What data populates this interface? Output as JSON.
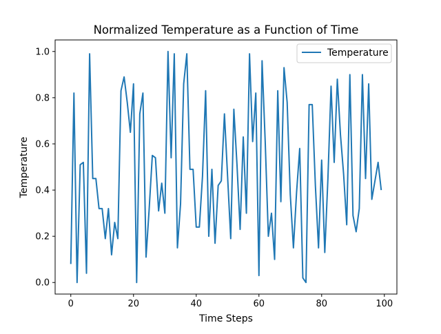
{
  "chart_data": {
    "type": "line",
    "title": "Normalized Temperature as a Function of Time",
    "xlabel": "Time Steps",
    "ylabel": "Temperature",
    "xlim": [
      -5,
      104
    ],
    "ylim": [
      -0.05,
      1.05
    ],
    "xticks": [
      0,
      20,
      40,
      60,
      80,
      100
    ],
    "yticks": [
      0.0,
      0.2,
      0.4,
      0.6,
      0.8,
      1.0
    ],
    "xtick_labels": [
      "0",
      "20",
      "40",
      "60",
      "80",
      "100"
    ],
    "ytick_labels": [
      "0.0",
      "0.2",
      "0.4",
      "0.6",
      "0.8",
      "1.0"
    ],
    "grid": false,
    "legend": {
      "position": "top-right"
    },
    "series": [
      {
        "name": "Temperature",
        "color": "#1f77b4",
        "x": [
          0,
          1,
          2,
          3,
          4,
          5,
          6,
          7,
          8,
          9,
          10,
          11,
          12,
          13,
          14,
          15,
          16,
          17,
          18,
          19,
          20,
          21,
          22,
          23,
          24,
          25,
          26,
          27,
          28,
          29,
          30,
          31,
          32,
          33,
          34,
          35,
          36,
          37,
          38,
          39,
          40,
          41,
          42,
          43,
          44,
          45,
          46,
          47,
          48,
          49,
          50,
          51,
          52,
          53,
          54,
          55,
          56,
          57,
          58,
          59,
          60,
          61,
          62,
          63,
          64,
          65,
          66,
          67,
          68,
          69,
          70,
          71,
          72,
          73,
          74,
          75,
          76,
          77,
          78,
          79,
          80,
          81,
          82,
          83,
          84,
          85,
          86,
          87,
          88,
          89,
          90,
          91,
          92,
          93,
          94,
          95,
          96,
          97,
          98,
          99
        ],
        "values": [
          0.08,
          0.82,
          0.0,
          0.51,
          0.52,
          0.04,
          0.99,
          0.45,
          0.45,
          0.32,
          0.32,
          0.19,
          0.32,
          0.12,
          0.26,
          0.19,
          0.83,
          0.89,
          0.78,
          0.65,
          0.86,
          0.0,
          0.73,
          0.82,
          0.11,
          0.32,
          0.55,
          0.54,
          0.31,
          0.43,
          0.3,
          1.0,
          0.54,
          0.99,
          0.15,
          0.34,
          0.86,
          0.99,
          0.49,
          0.49,
          0.24,
          0.24,
          0.46,
          0.83,
          0.2,
          0.49,
          0.17,
          0.42,
          0.44,
          0.73,
          0.46,
          0.19,
          0.75,
          0.51,
          0.23,
          0.63,
          0.3,
          0.99,
          0.61,
          0.82,
          0.03,
          0.96,
          0.61,
          0.2,
          0.3,
          0.1,
          0.83,
          0.35,
          0.93,
          0.78,
          0.38,
          0.15,
          0.39,
          0.58,
          0.02,
          0.0,
          0.77,
          0.77,
          0.42,
          0.15,
          0.53,
          0.13,
          0.45,
          0.85,
          0.52,
          0.88,
          0.64,
          0.47,
          0.25,
          0.9,
          0.29,
          0.22,
          0.32,
          0.9,
          0.45,
          0.86,
          0.36,
          0.44,
          0.52,
          0.4
        ]
      }
    ]
  }
}
